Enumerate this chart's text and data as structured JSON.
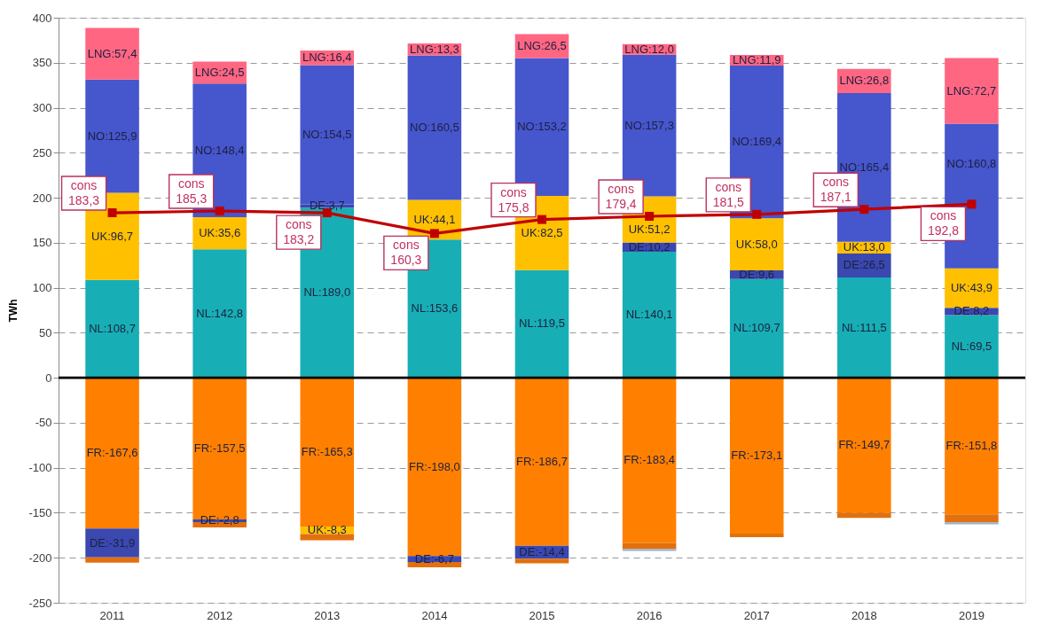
{
  "chart_data": {
    "type": "bar",
    "stacked": true,
    "ylabel": "TWh",
    "categories": [
      "2011",
      "2012",
      "2013",
      "2014",
      "2015",
      "2016",
      "2017",
      "2018",
      "2019"
    ],
    "ylim": [
      -250,
      400
    ],
    "yticks": [
      -250,
      -200,
      -150,
      -100,
      -50,
      0,
      50,
      100,
      150,
      200,
      250,
      300,
      350,
      400
    ],
    "grid": "y",
    "ref_lines": [
      {
        "axis": "y",
        "value": 0,
        "color": "#000000"
      }
    ],
    "series": [
      {
        "color": "#17afb5",
        "values": [
          108.7,
          142.8,
          189.0,
          153.6,
          119.5,
          140.1,
          109.7,
          111.5,
          69.5
        ],
        "value_labels": [
          "NL:108,7",
          "NL:142,8",
          "NL:189,0",
          "NL:153,6",
          "NL:119,5",
          "NL:140,1",
          "NL:109,7",
          "NL:111,5",
          "NL:69,5"
        ]
      },
      {
        "color": "#ff8000",
        "values": [
          -167.6,
          -157.5,
          -165.3,
          -198.0,
          -186.7,
          -183.4,
          -173.1,
          -149.7,
          -151.8
        ],
        "value_labels": [
          "FR:-167,6",
          "FR:-157,5",
          "FR:-165,3",
          "FR:-198,0",
          "FR:-186,7",
          "FR:-183,4",
          "FR:-173,1",
          "FR:-149,7",
          "FR:-151,8"
        ]
      },
      {
        "color": "#3a48b0",
        "values": [
          -31.9,
          -2.8,
          3.7,
          -6.7,
          -14.4,
          10.2,
          9.6,
          26.5,
          8.2
        ],
        "value_labels": [
          "DE:-31,9",
          "DE:-2,8",
          "DE:3,7",
          "DE:-6,7",
          "DE:-14,4",
          "DE:10,2",
          "DE:9,6",
          "DE:26,5",
          "DE:8,2"
        ]
      },
      {
        "color": "#ffc000",
        "values": [
          96.7,
          35.6,
          -8.3,
          44.1,
          82.5,
          51.2,
          58.0,
          13.0,
          43.9
        ],
        "value_labels": [
          "UK:96,7",
          "UK:35,6",
          "UK:-8,3",
          "UK:44,1",
          "UK:82,5",
          "UK:51,2",
          "UK:58,0",
          "UK:13,0",
          "UK:43,9"
        ]
      },
      {
        "color": "#4656cc",
        "values": [
          125.9,
          148.4,
          154.5,
          160.5,
          153.2,
          157.3,
          169.4,
          165.4,
          160.8
        ],
        "value_labels": [
          "NO:125,9",
          "NO:148,4",
          "NO:154,5",
          "NO:160,5",
          "NO:153,2",
          "NO:157,3",
          "NO:169,4",
          "NO:165,4",
          "NO:160,8"
        ]
      },
      {
        "color": "#ff6682",
        "values": [
          57.4,
          24.5,
          16.4,
          13.3,
          26.5,
          12.0,
          11.9,
          26.8,
          72.7
        ],
        "value_labels": [
          "LNG:57,4",
          "LNG:24,5",
          "LNG:16,4",
          "LNG:13,3",
          "LNG:26,5",
          "LNG:12,0",
          "LNG:11,9",
          "LNG:26,8",
          "LNG:72,7"
        ]
      },
      {
        "color": "#e2700e",
        "values": [
          -6,
          -6,
          -7,
          -6,
          -5,
          -7,
          -4,
          -6,
          -9
        ]
      },
      {
        "color": "#8db4d8",
        "values": [
          null,
          null,
          null,
          null,
          null,
          -2,
          null,
          null,
          -2
        ]
      },
      {
        "type": "line",
        "name": "cons",
        "color": "#c00000",
        "marker": "square",
        "values": [
          183.3,
          185.3,
          183.2,
          160.3,
          175.8,
          179.4,
          181.5,
          187.1,
          192.8
        ],
        "value_labels": [
          "183,3",
          "185,3",
          "183,2",
          "160,3",
          "175,8",
          "179,4",
          "181,5",
          "187,1",
          "192,8"
        ]
      }
    ]
  }
}
